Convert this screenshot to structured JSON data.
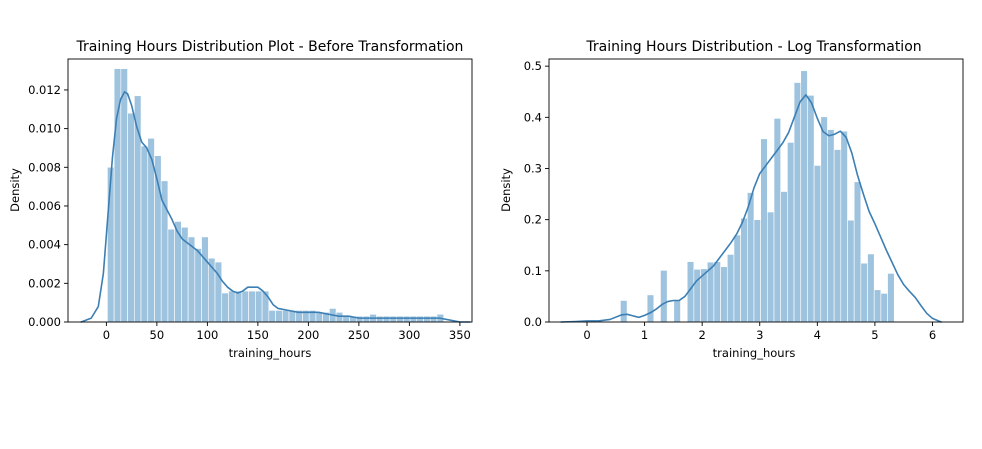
{
  "chart_data": [
    {
      "type": "bar",
      "title": "Training Hours Distribution Plot - Before Transformation",
      "xlabel": "training_hours",
      "ylabel": "Density",
      "xlim": [
        -38,
        362
      ],
      "ylim": [
        0,
        0.0136
      ],
      "x_ticks": [
        0,
        50,
        100,
        150,
        200,
        250,
        300,
        350
      ],
      "y_ticks": [
        0.0,
        0.002,
        0.004,
        0.006,
        0.008,
        0.01,
        0.012
      ],
      "x_tick_labels": [
        "0",
        "50",
        "100",
        "150",
        "200",
        "250",
        "300",
        "350"
      ],
      "y_tick_labels": [
        "0.000",
        "0.002",
        "0.004",
        "0.006",
        "0.008",
        "0.010",
        "0.012"
      ],
      "bar_color": "#9ec3df",
      "kde_color": "#3c7fb4",
      "histogram": {
        "bin_edges": [
          1,
          7.66,
          14.32,
          20.98,
          27.64,
          34.3,
          40.96,
          47.62,
          54.28,
          60.94,
          67.6,
          74.26,
          80.92,
          87.58,
          94.24,
          100.9,
          107.56,
          114.22,
          120.88,
          127.54,
          134.2,
          140.86,
          147.52,
          154.18,
          160.84,
          167.5,
          174.16,
          180.82,
          187.48,
          194.14,
          200.8,
          207.46,
          214.12,
          220.78,
          227.44,
          234.1,
          240.76,
          247.42,
          254.08,
          260.74,
          267.4,
          274.06,
          280.72,
          287.38,
          294.04,
          300.7,
          307.36,
          314.02,
          320.68,
          327.34,
          334
        ],
        "values": [
          0.008,
          0.0131,
          0.0131,
          0.0108,
          0.0117,
          0.0091,
          0.0095,
          0.0086,
          0.0073,
          0.0048,
          0.0052,
          0.0049,
          0.0044,
          0.0038,
          0.0044,
          0.0033,
          0.0031,
          0.0015,
          0.0016,
          0.0016,
          0.0016,
          0.0016,
          0.0016,
          0.0016,
          0.0006,
          0.0006,
          0.0006,
          0.0006,
          0.0006,
          0.0006,
          0.0006,
          0.0005,
          0.0005,
          0.0007,
          0.0005,
          0.0003,
          0.0003,
          0.0003,
          0.0003,
          0.0004,
          0.0003,
          0.0003,
          0.0003,
          0.0003,
          0.0003,
          0.0003,
          0.0003,
          0.0003,
          0.0003,
          0.0004
        ]
      },
      "kde": {
        "x": [
          -25,
          -15,
          -8,
          -3,
          0,
          3,
          6,
          10,
          14,
          18,
          21,
          25,
          30,
          35,
          40,
          45,
          50,
          55,
          60,
          65,
          70,
          75,
          80,
          85,
          90,
          95,
          100,
          105,
          110,
          115,
          120,
          125,
          130,
          135,
          140,
          145,
          150,
          155,
          160,
          165,
          170,
          180,
          190,
          200,
          210,
          220,
          230,
          240,
          250,
          260,
          270,
          280,
          290,
          300,
          310,
          320,
          330,
          340,
          350,
          360
        ],
        "y": [
          0.0,
          0.0002,
          0.0008,
          0.0025,
          0.0045,
          0.0065,
          0.0085,
          0.0105,
          0.0115,
          0.0119,
          0.0118,
          0.0112,
          0.0101,
          0.0093,
          0.009,
          0.0084,
          0.0074,
          0.0063,
          0.0058,
          0.0053,
          0.0047,
          0.0043,
          0.0041,
          0.0039,
          0.0037,
          0.0034,
          0.0031,
          0.0028,
          0.0025,
          0.0021,
          0.0018,
          0.0016,
          0.0015,
          0.0016,
          0.0018,
          0.0018,
          0.0018,
          0.0016,
          0.0013,
          0.0009,
          0.0007,
          0.0006,
          0.0005,
          0.0005,
          0.0005,
          0.0004,
          0.0003,
          0.0003,
          0.0002,
          0.0002,
          0.0002,
          0.0002,
          0.0002,
          0.0002,
          0.0002,
          0.0002,
          0.0002,
          0.0001,
          0.0,
          0.0
        ]
      }
    },
    {
      "type": "bar",
      "title": "Training Hours Distribution - Log Transformation",
      "xlabel": "training_hours",
      "ylabel": "Density",
      "xlim": [
        -0.66,
        6.53
      ],
      "ylim": [
        0,
        0.514
      ],
      "x_ticks": [
        0,
        1,
        2,
        3,
        4,
        5,
        6
      ],
      "y_ticks": [
        0.0,
        0.1,
        0.2,
        0.3,
        0.4,
        0.5
      ],
      "x_tick_labels": [
        "0",
        "1",
        "2",
        "3",
        "4",
        "5",
        "6"
      ],
      "y_tick_labels": [
        "0.0",
        "0.1",
        "0.2",
        "0.3",
        "0.4",
        "0.5"
      ],
      "bar_color": "#9ec3df",
      "kde_color": "#3c7fb4",
      "histogram": {
        "bin_edges": [
          0.0,
          0.116,
          0.232,
          0.348,
          0.464,
          0.58,
          0.696,
          0.812,
          0.928,
          1.044,
          1.16,
          1.276,
          1.392,
          1.508,
          1.624,
          1.74,
          1.856,
          1.972,
          2.088,
          2.204,
          2.32,
          2.436,
          2.552,
          2.668,
          2.784,
          2.9,
          3.016,
          3.132,
          3.248,
          3.364,
          3.48,
          3.596,
          3.712,
          3.828,
          3.944,
          4.06,
          4.176,
          4.292,
          4.408,
          4.524,
          4.64,
          4.756,
          4.872,
          4.988,
          5.104,
          5.22,
          5.336,
          5.452,
          5.568,
          5.684,
          5.8
        ],
        "values": [
          0.0,
          0.0,
          0.0,
          0.0,
          0.0,
          0.042,
          0.0,
          0.0,
          0.0,
          0.053,
          0.0,
          0.101,
          0.0,
          0.043,
          0.0,
          0.118,
          0.103,
          0.104,
          0.117,
          0.118,
          0.108,
          0.132,
          0.17,
          0.203,
          0.253,
          0.2,
          0.358,
          0.215,
          0.398,
          0.255,
          0.351,
          0.468,
          0.491,
          0.443,
          0.306,
          0.401,
          0.376,
          0.337,
          0.373,
          0.199,
          0.274,
          0.115,
          0.133,
          0.063,
          0.056,
          0.095,
          0.0,
          0.0,
          0.0,
          0.0
        ]
      },
      "kde": {
        "x": [
          -0.45,
          -0.2,
          0.0,
          0.2,
          0.4,
          0.6,
          0.7,
          0.8,
          0.9,
          1.0,
          1.1,
          1.2,
          1.3,
          1.4,
          1.5,
          1.6,
          1.7,
          1.8,
          1.9,
          2.0,
          2.1,
          2.2,
          2.3,
          2.4,
          2.5,
          2.6,
          2.7,
          2.8,
          2.9,
          3.0,
          3.1,
          3.2,
          3.3,
          3.4,
          3.5,
          3.6,
          3.7,
          3.8,
          3.9,
          4.0,
          4.1,
          4.2,
          4.3,
          4.4,
          4.5,
          4.6,
          4.7,
          4.8,
          4.9,
          5.0,
          5.1,
          5.2,
          5.3,
          5.4,
          5.5,
          5.6,
          5.7,
          5.8,
          5.9,
          6.0,
          6.15
        ],
        "y": [
          0.0,
          0.001,
          0.002,
          0.002,
          0.005,
          0.014,
          0.015,
          0.012,
          0.009,
          0.013,
          0.018,
          0.025,
          0.034,
          0.04,
          0.042,
          0.042,
          0.05,
          0.065,
          0.08,
          0.09,
          0.1,
          0.11,
          0.125,
          0.14,
          0.155,
          0.172,
          0.195,
          0.225,
          0.262,
          0.29,
          0.305,
          0.32,
          0.335,
          0.35,
          0.37,
          0.4,
          0.43,
          0.444,
          0.428,
          0.398,
          0.372,
          0.364,
          0.367,
          0.373,
          0.361,
          0.33,
          0.286,
          0.25,
          0.216,
          0.192,
          0.166,
          0.14,
          0.116,
          0.092,
          0.073,
          0.06,
          0.048,
          0.032,
          0.017,
          0.007,
          0.0
        ]
      }
    }
  ]
}
